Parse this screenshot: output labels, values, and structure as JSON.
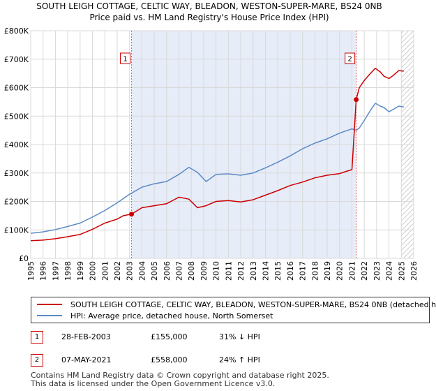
{
  "chart_data": {
    "type": "line",
    "title": "SOUTH LEIGH COTTAGE, CELTIC WAY, BLEADON, WESTON-SUPER-MARE, BS24 0NB",
    "subtitle": "Price paid vs. HM Land Registry's House Price Index (HPI)",
    "xlabel": "",
    "ylabel": "",
    "xlim": [
      1995,
      2026
    ],
    "ylim": [
      0,
      800000
    ],
    "x_ticks": [
      1995,
      1996,
      1997,
      1998,
      1999,
      2000,
      2001,
      2002,
      2003,
      2004,
      2005,
      2006,
      2007,
      2008,
      2009,
      2010,
      2011,
      2012,
      2013,
      2014,
      2015,
      2016,
      2017,
      2018,
      2019,
      2020,
      2021,
      2022,
      2023,
      2024,
      2025,
      2026
    ],
    "y_ticks": [
      {
        "value": 0,
        "label": "£0"
      },
      {
        "value": 100000,
        "label": "£100K"
      },
      {
        "value": 200000,
        "label": "£200K"
      },
      {
        "value": 300000,
        "label": "£300K"
      },
      {
        "value": 400000,
        "label": "£400K"
      },
      {
        "value": 500000,
        "label": "£500K"
      },
      {
        "value": 600000,
        "label": "£600K"
      },
      {
        "value": 700000,
        "label": "£700K"
      },
      {
        "value": 800000,
        "label": "£800K"
      }
    ],
    "series": [
      {
        "name": "SOUTH LEIGH COTTAGE, CELTIC WAY, BLEADON, WESTON-SUPER-MARE, BS24 0NB (detached h",
        "color": "#cc0000",
        "x": [
          1995.0,
          1996.0,
          1997.0,
          1998.0,
          1999.0,
          2000.0,
          2001.0,
          2002.0,
          2002.5,
          2003.16,
          2004.0,
          2005.0,
          2006.0,
          2007.0,
          2007.8,
          2008.5,
          2009.2,
          2010.0,
          2011.0,
          2012.0,
          2013.0,
          2014.0,
          2015.0,
          2016.0,
          2017.0,
          2018.0,
          2019.0,
          2020.0,
          2021.0,
          2021.35,
          2021.6,
          2022.0,
          2022.5,
          2022.9,
          2023.3,
          2023.6,
          2024.0,
          2024.4,
          2024.8,
          2025.2
        ],
        "values": [
          62000,
          64000,
          69000,
          76000,
          84000,
          102000,
          124000,
          138000,
          150000,
          155000,
          178000,
          185000,
          192000,
          215000,
          208000,
          178000,
          185000,
          200000,
          203000,
          198000,
          206000,
          222000,
          238000,
          256000,
          268000,
          283000,
          292000,
          298000,
          312000,
          558000,
          600000,
          625000,
          650000,
          668000,
          655000,
          640000,
          632000,
          645000,
          660000,
          658000
        ]
      },
      {
        "name": "HPI: Average price, detached house, North Somerset",
        "color": "#5b8ac6",
        "x": [
          1995.0,
          1996.0,
          1997.0,
          1998.0,
          1999.0,
          2000.0,
          2001.0,
          2002.0,
          2003.0,
          2004.0,
          2005.0,
          2006.0,
          2007.0,
          2007.8,
          2008.5,
          2009.2,
          2010.0,
          2011.0,
          2012.0,
          2013.0,
          2014.0,
          2015.0,
          2016.0,
          2017.0,
          2018.0,
          2019.0,
          2020.0,
          2021.0,
          2021.35,
          2021.6,
          2022.0,
          2022.5,
          2022.9,
          2023.3,
          2023.6,
          2024.0,
          2024.4,
          2024.8,
          2025.2
        ],
        "values": [
          88000,
          93000,
          101000,
          112000,
          124000,
          145000,
          168000,
          195000,
          225000,
          250000,
          262000,
          270000,
          295000,
          320000,
          302000,
          270000,
          295000,
          297000,
          292000,
          300000,
          318000,
          338000,
          360000,
          385000,
          405000,
          420000,
          440000,
          455000,
          450000,
          458000,
          485000,
          520000,
          545000,
          535000,
          530000,
          515000,
          525000,
          535000,
          532000
        ]
      }
    ],
    "annotations": [
      {
        "label": "1",
        "x": 2003.16,
        "y": 155000,
        "series": 0
      },
      {
        "label": "2",
        "x": 2021.35,
        "y": 558000,
        "series": 0
      }
    ],
    "hatched_region": {
      "from": 2025.0,
      "to": 2026.0
    },
    "shaded_region": {
      "from": 2003.16,
      "to": 2021.35
    }
  },
  "colors": {
    "price_paid": "#cc0000",
    "hpi": "#5b8ac6",
    "shade": "#e6ecf8",
    "grid": "#d9d9d9",
    "marker_border": "#cc0000"
  },
  "legend": {
    "items": [
      {
        "label": "SOUTH LEIGH COTTAGE, CELTIC WAY, BLEADON, WESTON-SUPER-MARE, BS24 0NB (detached h",
        "color": "#cc0000"
      },
      {
        "label": "HPI: Average price, detached house, North Somerset",
        "color": "#5b8ac6"
      }
    ]
  },
  "transactions": [
    {
      "num": "1",
      "date": "28-FEB-2003",
      "price": "£155,000",
      "hpi": "31% ↓ HPI"
    },
    {
      "num": "2",
      "date": "07-MAY-2021",
      "price": "£558,000",
      "hpi": "24% ↑ HPI"
    }
  ],
  "footer": {
    "line1": "Contains HM Land Registry data © Crown copyright and database right 2025.",
    "line2": "This data is licensed under the Open Government Licence v3.0."
  }
}
